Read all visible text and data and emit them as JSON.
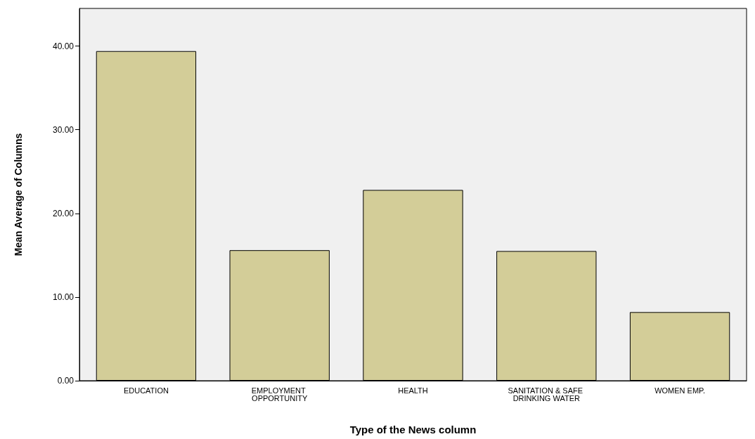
{
  "chart_data": {
    "type": "bar",
    "xlabel": "Type of the News column",
    "ylabel": "Mean Average of Columns",
    "categories": [
      "EDUCATION",
      "EMPLOYMENT OPPORTUNITY",
      "HEALTH",
      "SANITATION & SAFE DRINKING WATER",
      "WOMEN EMP."
    ],
    "values": [
      39.4,
      15.6,
      22.8,
      15.5,
      8.2
    ],
    "color": "#d3cd98",
    "ylim": [
      0,
      44.5
    ],
    "yticks": [
      {
        "value": 0,
        "label": "0.00"
      },
      {
        "value": 10,
        "label": "10.00"
      },
      {
        "value": 20,
        "label": "20.00"
      },
      {
        "value": 30,
        "label": "30.00"
      },
      {
        "value": 40,
        "label": "40.00"
      }
    ],
    "grid": false
  }
}
